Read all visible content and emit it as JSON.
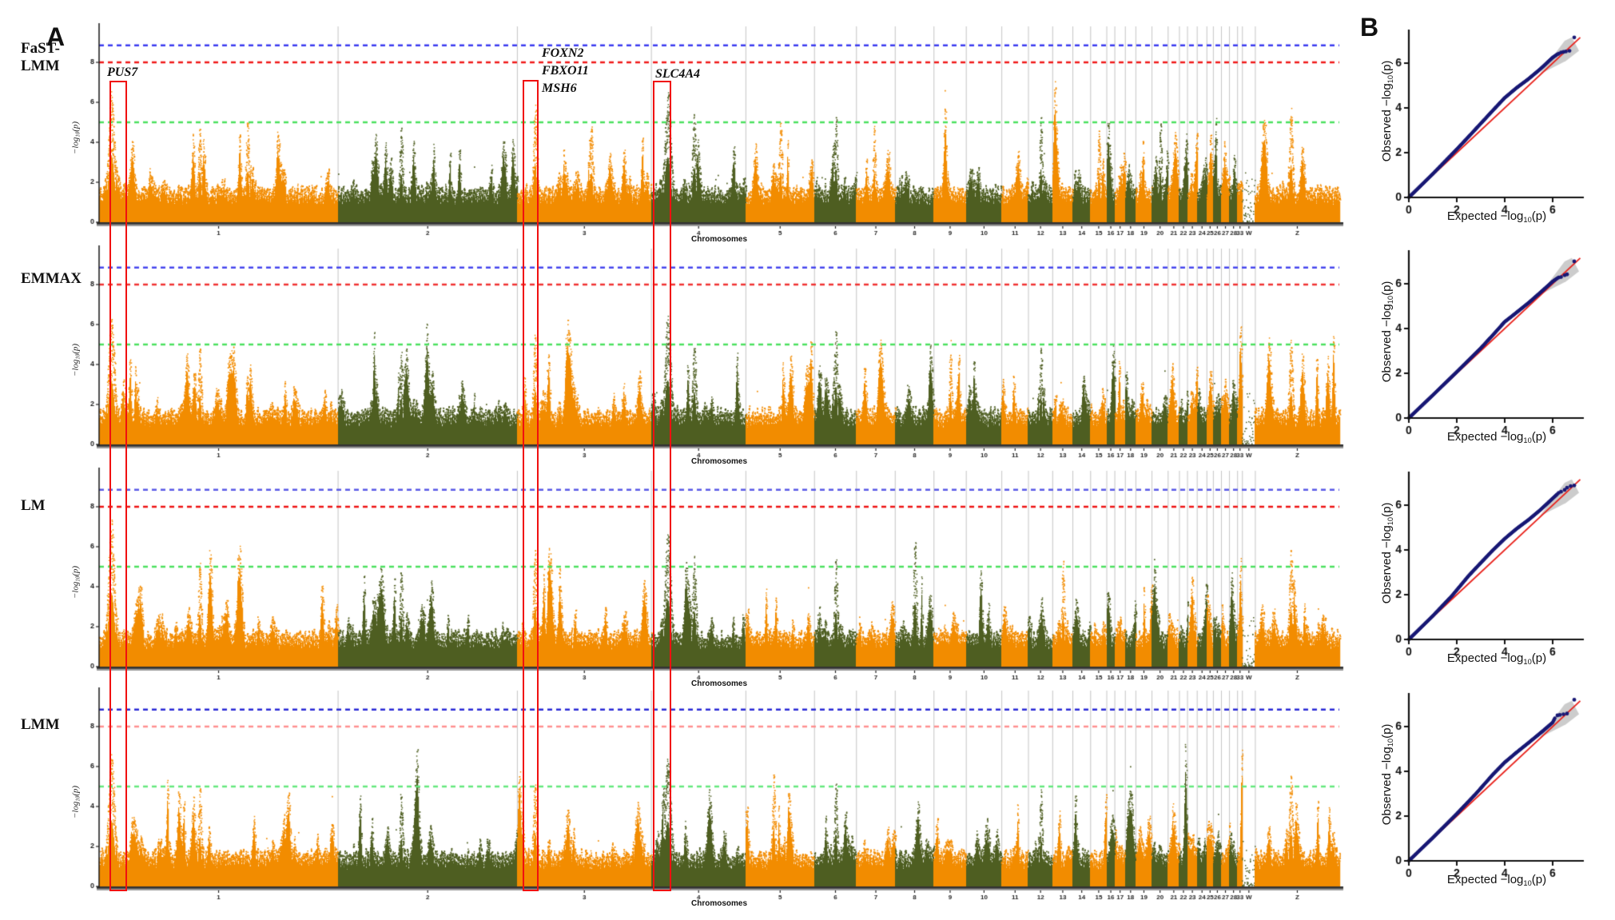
{
  "panels": {
    "a": "A",
    "b": "B"
  },
  "methods": [
    {
      "label": "FaST-\nLMM"
    },
    {
      "label": "EMMAX"
    },
    {
      "label": "LM"
    },
    {
      "label": "LMM"
    }
  ],
  "genes": {
    "pus7": "PUS7",
    "foxn2": "FOXN2",
    "fbxo11": "FBXO11",
    "msh6": "MSH6",
    "slc4a4": "SLC4A4"
  },
  "axis": {
    "manhattan_x": "Chromosomes",
    "log_prefix": "−log",
    "log_sub": "10",
    "log_suffix": "(p)",
    "expected_prefix": "Expected −log",
    "observed_prefix": "Observed −log"
  },
  "chart_data": {
    "manhattan": {
      "type": "scatter",
      "xlabel": "Chromosomes",
      "ylabel": "-log10(p)",
      "yticks": [
        0,
        2,
        4,
        6,
        8
      ],
      "ylim": [
        0,
        9.5
      ],
      "categories": [
        "1",
        "2",
        "3",
        "4",
        "5",
        "6",
        "7",
        "8",
        "9",
        "10",
        "11",
        "12",
        "13",
        "14",
        "15",
        "16",
        "17",
        "18",
        "19",
        "20",
        "21",
        "22",
        "23",
        "24",
        "25",
        "26",
        "27",
        "28",
        "33",
        "W",
        "Z"
      ],
      "category_weights": [
        296,
        222,
        166,
        117,
        85,
        52,
        48,
        48,
        40,
        44,
        33,
        30,
        25,
        22,
        20,
        10,
        13,
        13,
        20,
        20,
        14,
        10,
        12,
        12,
        8,
        10,
        10,
        10,
        6,
        16,
        104
      ],
      "thresholds": {
        "blue": 8.85,
        "red": 8.0,
        "green": 5.0
      },
      "colors": {
        "odd_chrom": "#F28C00",
        "even_chrom": "#4E5E21",
        "boundary": "#c4c4c4"
      },
      "highlighted_loci": [
        {
          "gene": "PUS7",
          "chrom": "1"
        },
        {
          "gene": "FOXN2 / FBXO11 / MSH6",
          "chrom": "3"
        },
        {
          "gene": "SLC4A4",
          "chrom": "4"
        }
      ],
      "plots": [
        {
          "method": "FaST-LMM",
          "seed": 101,
          "line_colors": {
            "blue": "#3c3cf0",
            "red": "#f01818",
            "green": "#4ae05e"
          },
          "peaks": [
            [
              "1",
              0.05,
              6.7,
              5
            ],
            [
              "1",
              0.42,
              5.0,
              2.5
            ],
            [
              "1",
              0.62,
              5.1,
              2.5
            ],
            [
              "2",
              0.35,
              4.8,
              2.5
            ],
            [
              "3",
              0.13,
              5.9,
              3
            ],
            [
              "3",
              0.55,
              5.0,
              2.5
            ],
            [
              "4",
              0.17,
              6.5,
              5
            ],
            [
              "4",
              0.45,
              5.5,
              3
            ],
            [
              "5",
              0.5,
              5.0,
              2.5
            ],
            [
              "6",
              0.5,
              5.4,
              2.5
            ],
            [
              "7",
              0.45,
              5.0,
              2
            ],
            [
              "12",
              0.5,
              5.3,
              2
            ],
            [
              "15",
              0.5,
              4.9,
              2
            ],
            [
              "20",
              0.5,
              5.0,
              2
            ],
            [
              "Z",
              0.42,
              5.7,
              3
            ]
          ]
        },
        {
          "method": "EMMAX",
          "seed": 202,
          "line_colors": {
            "blue": "#4646ee",
            "red": "#f03030",
            "green": "#4ae05e"
          },
          "peaks": [
            [
              "1",
              0.05,
              6.3,
              5
            ],
            [
              "1",
              0.42,
              4.9,
              2.5
            ],
            [
              "2",
              0.35,
              4.7,
              2.5
            ],
            [
              "3",
              0.13,
              5.5,
              3
            ],
            [
              "4",
              0.17,
              6.4,
              5
            ],
            [
              "4",
              0.45,
              5.2,
              3
            ],
            [
              "6",
              0.5,
              5.9,
              2.5
            ],
            [
              "9",
              0.5,
              5.2,
              2
            ],
            [
              "12",
              0.5,
              5.0,
              2
            ],
            [
              "Z",
              0.42,
              5.2,
              3
            ]
          ]
        },
        {
          "method": "LM",
          "seed": 303,
          "line_colors": {
            "blue": "#5a5ae6",
            "red": "#ee1212",
            "green": "#4ae05e"
          },
          "peaks": [
            [
              "1",
              0.05,
              7.4,
              5
            ],
            [
              "1",
              0.42,
              5.3,
              2.5
            ],
            [
              "2",
              0.35,
              5.0,
              2.5
            ],
            [
              "3",
              0.13,
              6.0,
              3
            ],
            [
              "4",
              0.17,
              6.7,
              5
            ],
            [
              "4",
              0.45,
              5.6,
              3
            ],
            [
              "6",
              0.5,
              5.5,
              2.5
            ],
            [
              "8",
              0.5,
              6.4,
              2.5
            ],
            [
              "13",
              0.5,
              5.4,
              2
            ],
            [
              "Z",
              0.42,
              5.8,
              3
            ]
          ]
        },
        {
          "method": "LMM",
          "seed": 404,
          "line_colors": {
            "blue": "#2a2ad6",
            "red": "#ff8f8f",
            "green": "#63e87d"
          },
          "peaks": [
            [
              "1",
              0.05,
              6.6,
              5
            ],
            [
              "1",
              0.42,
              5.0,
              2.5
            ],
            [
              "2",
              0.35,
              4.8,
              2.5
            ],
            [
              "3",
              0.13,
              5.4,
              3
            ],
            [
              "4",
              0.17,
              6.5,
              5
            ],
            [
              "5",
              0.4,
              5.9,
              2.5
            ],
            [
              "6",
              0.5,
              5.3,
              2.5
            ],
            [
              "12",
              0.5,
              5.1,
              2
            ],
            [
              "Z",
              0.42,
              5.5,
              3
            ]
          ]
        }
      ]
    },
    "qq": {
      "type": "scatter",
      "xlabel": "Expected -log10(p)",
      "ylabel": "Observed -log10(p)",
      "xticks": [
        0,
        2,
        4,
        6
      ],
      "yticks": [
        0,
        2,
        4,
        6
      ],
      "xlim": [
        0,
        7.3
      ],
      "ylim": [
        0,
        7.5
      ],
      "colors": {
        "points": "#191975",
        "identity_line": "#e8201a",
        "confidence": "#cccccc"
      },
      "funnel": [
        [
          5.45,
          5.5
        ],
        [
          6.5,
          7.0
        ],
        [
          6.8,
          7.15
        ],
        [
          7.1,
          6.55
        ],
        [
          6.55,
          6.1
        ]
      ],
      "plots": [
        {
          "method": "FaST-LMM",
          "curve": [
            [
              0,
              0
            ],
            [
              1,
              1.05
            ],
            [
              2,
              2.15
            ],
            [
              2.5,
              2.72
            ],
            [
              3,
              3.3
            ],
            [
              3.5,
              3.88
            ],
            [
              4,
              4.45
            ],
            [
              4.5,
              4.9
            ],
            [
              5,
              5.3
            ],
            [
              5.5,
              5.75
            ],
            [
              6,
              6.25
            ],
            [
              6.2,
              6.4
            ]
          ],
          "tail": [
            [
              6.25,
              6.42
            ],
            [
              6.35,
              6.48
            ],
            [
              6.45,
              6.5
            ],
            [
              6.55,
              6.52
            ],
            [
              6.7,
              6.55
            ],
            [
              6.9,
              7.15
            ]
          ]
        },
        {
          "method": "EMMAX",
          "curve": [
            [
              0,
              0
            ],
            [
              1,
              1.02
            ],
            [
              2,
              2.06
            ],
            [
              3,
              3.12
            ],
            [
              3.5,
              3.7
            ],
            [
              4,
              4.3
            ],
            [
              4.3,
              4.55
            ],
            [
              5,
              5.15
            ],
            [
              5.5,
              5.62
            ],
            [
              6,
              6.1
            ],
            [
              6.2,
              6.25
            ]
          ],
          "tail": [
            [
              6.25,
              6.28
            ],
            [
              6.35,
              6.3
            ],
            [
              6.5,
              6.38
            ],
            [
              6.6,
              6.42
            ],
            [
              6.9,
              7.0
            ]
          ]
        },
        {
          "method": "LM",
          "curve": [
            [
              0,
              0
            ],
            [
              1,
              1.05
            ],
            [
              1.8,
              1.95
            ],
            [
              2.5,
              2.85
            ],
            [
              3,
              3.42
            ],
            [
              3.5,
              3.98
            ],
            [
              4,
              4.5
            ],
            [
              4.5,
              4.95
            ],
            [
              5,
              5.35
            ],
            [
              5.5,
              5.8
            ],
            [
              6,
              6.3
            ],
            [
              6.2,
              6.5
            ]
          ],
          "tail": [
            [
              6.25,
              6.55
            ],
            [
              6.35,
              6.6
            ],
            [
              6.5,
              6.68
            ],
            [
              6.6,
              6.78
            ],
            [
              6.75,
              6.85
            ],
            [
              6.9,
              6.88
            ]
          ]
        },
        {
          "method": "LMM",
          "curve": [
            [
              0,
              0
            ],
            [
              1,
              1.03
            ],
            [
              2,
              2.1
            ],
            [
              2.8,
              3.0
            ],
            [
              3.5,
              3.85
            ],
            [
              4,
              4.4
            ],
            [
              4.5,
              4.85
            ],
            [
              5,
              5.28
            ],
            [
              5.5,
              5.72
            ],
            [
              6,
              6.18
            ],
            [
              6.1,
              6.4
            ]
          ],
          "tail": [
            [
              6.2,
              6.5
            ],
            [
              6.3,
              6.52
            ],
            [
              6.45,
              6.55
            ],
            [
              6.6,
              6.58
            ],
            [
              6.9,
              7.2
            ]
          ]
        }
      ]
    }
  }
}
